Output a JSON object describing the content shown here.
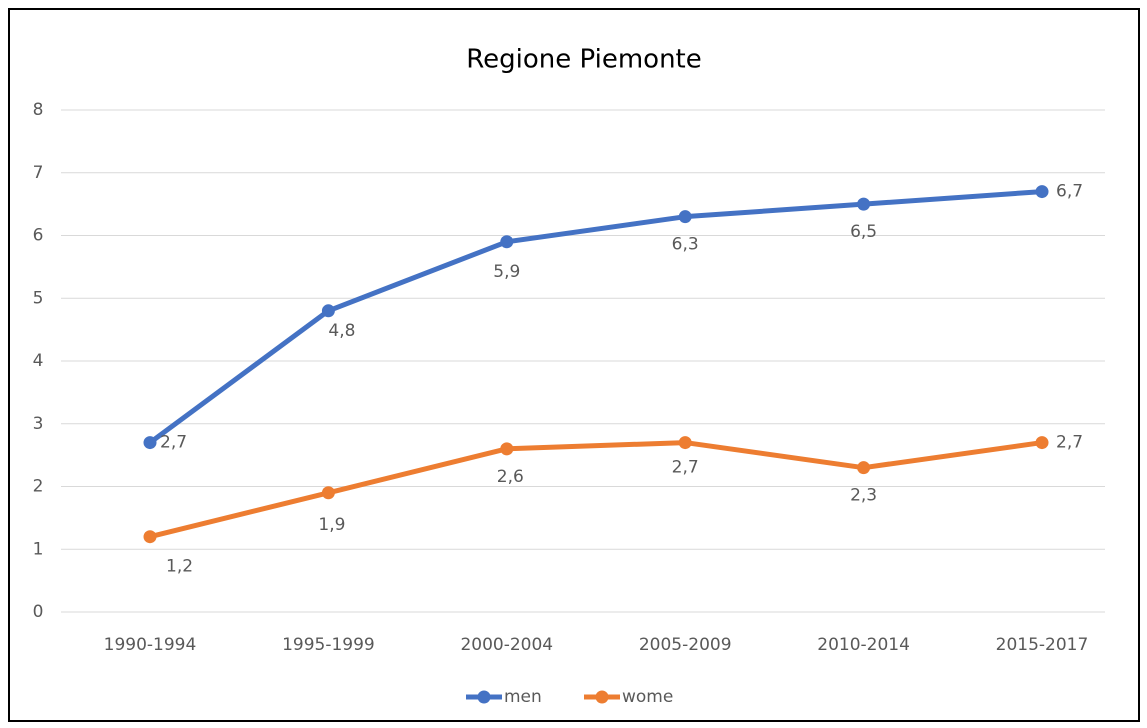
{
  "chart_data": {
    "type": "line",
    "title": "Regione Piemonte",
    "categories": [
      "1990-1994",
      "1995-1999",
      "2000-2004",
      "2005-2009",
      "2010-2014",
      "2015-2017"
    ],
    "series": [
      {
        "name": "men",
        "color": "#4472c4",
        "values": [
          2.7,
          4.8,
          5.9,
          6.3,
          6.5,
          6.7
        ],
        "value_labels": [
          "2,7",
          "4,8",
          "5,9",
          "6,3",
          "6,5",
          "6,7"
        ]
      },
      {
        "name": "wome",
        "color": "#ed7d31",
        "values": [
          1.2,
          1.9,
          2.6,
          2.7,
          2.3,
          2.7
        ],
        "value_labels": [
          "1,2",
          "1,9",
          "2,6",
          "2,7",
          "2,3",
          "2,7"
        ]
      }
    ],
    "ylim": [
      0,
      8
    ],
    "yticks": [
      0,
      1,
      2,
      3,
      4,
      5,
      6,
      7,
      8
    ],
    "grid": true,
    "legend": "bottom"
  }
}
